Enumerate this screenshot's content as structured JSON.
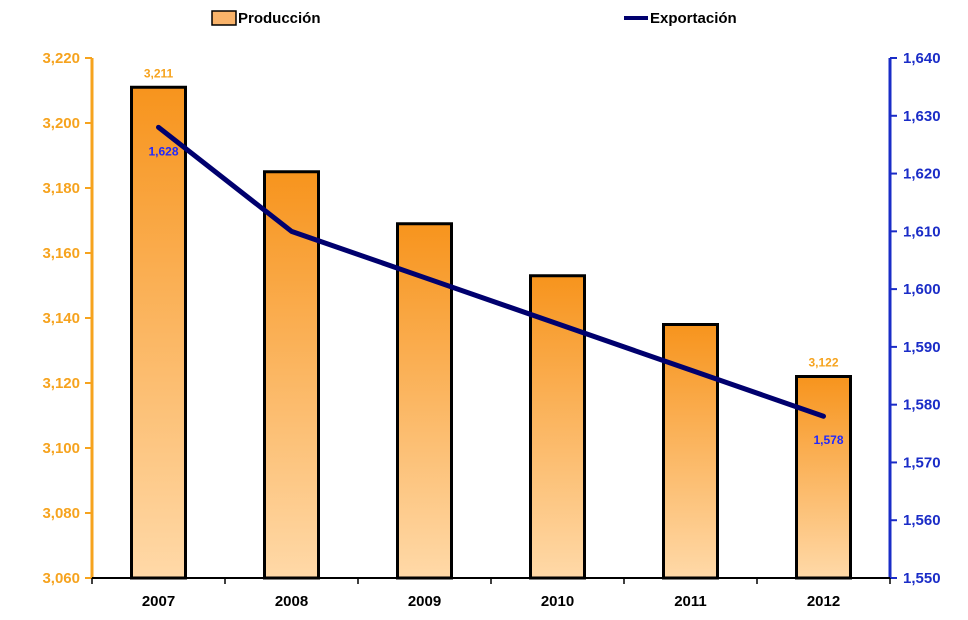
{
  "chart_data": {
    "type": "bar+line",
    "categories": [
      "2007",
      "2008",
      "2009",
      "2010",
      "2011",
      "2012"
    ],
    "series": [
      {
        "name": "Producción",
        "type": "bar",
        "axis": "left",
        "values": [
          3211,
          3185,
          3169,
          3153,
          3138,
          3122
        ],
        "color": "#f7941d",
        "color_light": "#ffd9a8",
        "data_labels": {
          "0": "3,211",
          "5": "3,122"
        }
      },
      {
        "name": "Exportación",
        "type": "line",
        "axis": "right",
        "values": [
          1628,
          1610,
          1602,
          1594,
          1586,
          1578
        ],
        "color": "#00006e",
        "data_labels": {
          "0": "1,628",
          "5": "1,578"
        }
      }
    ],
    "y_left": {
      "range": [
        3060,
        3220
      ],
      "ticks": [
        "3,060",
        "3,080",
        "3,100",
        "3,120",
        "3,140",
        "3,160",
        "3,180",
        "3,200",
        "3,220"
      ],
      "color": "#f6a31e"
    },
    "y_right": {
      "range": [
        1550,
        1640
      ],
      "ticks": [
        "1,550",
        "1,560",
        "1,570",
        "1,580",
        "1,590",
        "1,600",
        "1,610",
        "1,620",
        "1,630",
        "1,640"
      ],
      "color": "#1a2cc7"
    },
    "legend": {
      "placement": "top"
    },
    "grid": false
  }
}
